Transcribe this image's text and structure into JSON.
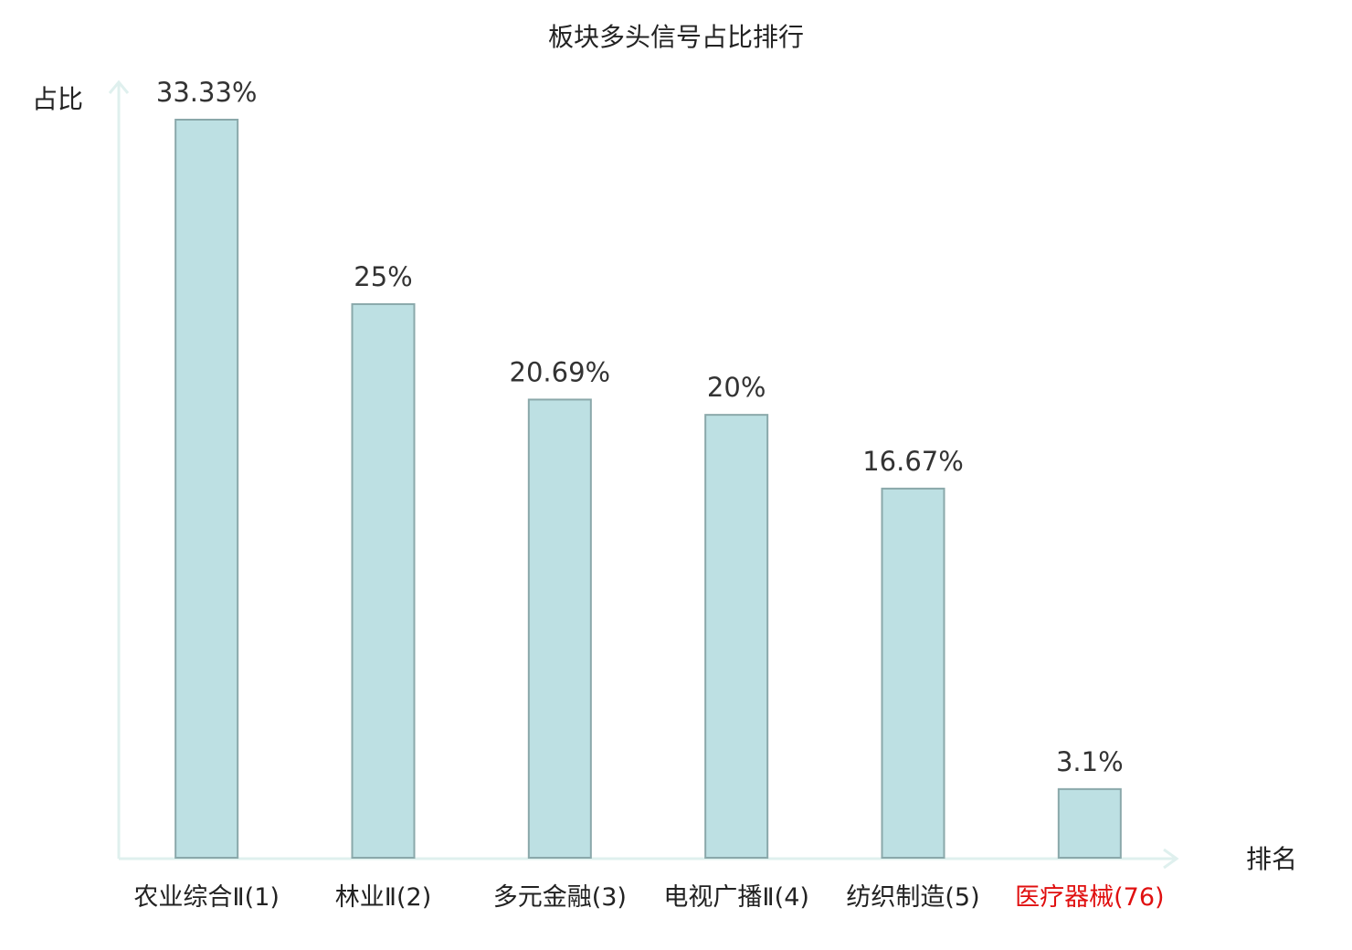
{
  "chart_data": {
    "type": "bar",
    "title": "板块多头信号占比排行",
    "y_label": "占比",
    "x_label": "排名",
    "categories": [
      "农业综合Ⅱ(1)",
      "林业Ⅱ(2)",
      "多元金融(3)",
      "电视广播Ⅱ(4)",
      "纺织制造(5)",
      "医疗器械(76)"
    ],
    "category_colors": [
      "#222222",
      "#222222",
      "#222222",
      "#222222",
      "#222222",
      "#e01010"
    ],
    "values": [
      33.33,
      25,
      20.69,
      20,
      16.67,
      3.1
    ],
    "value_labels": [
      "33.33%",
      "25%",
      "20.69%",
      "20%",
      "16.67%",
      "3.1%"
    ],
    "color": "#bde0e3",
    "edge_color": "#8aa8aa"
  }
}
